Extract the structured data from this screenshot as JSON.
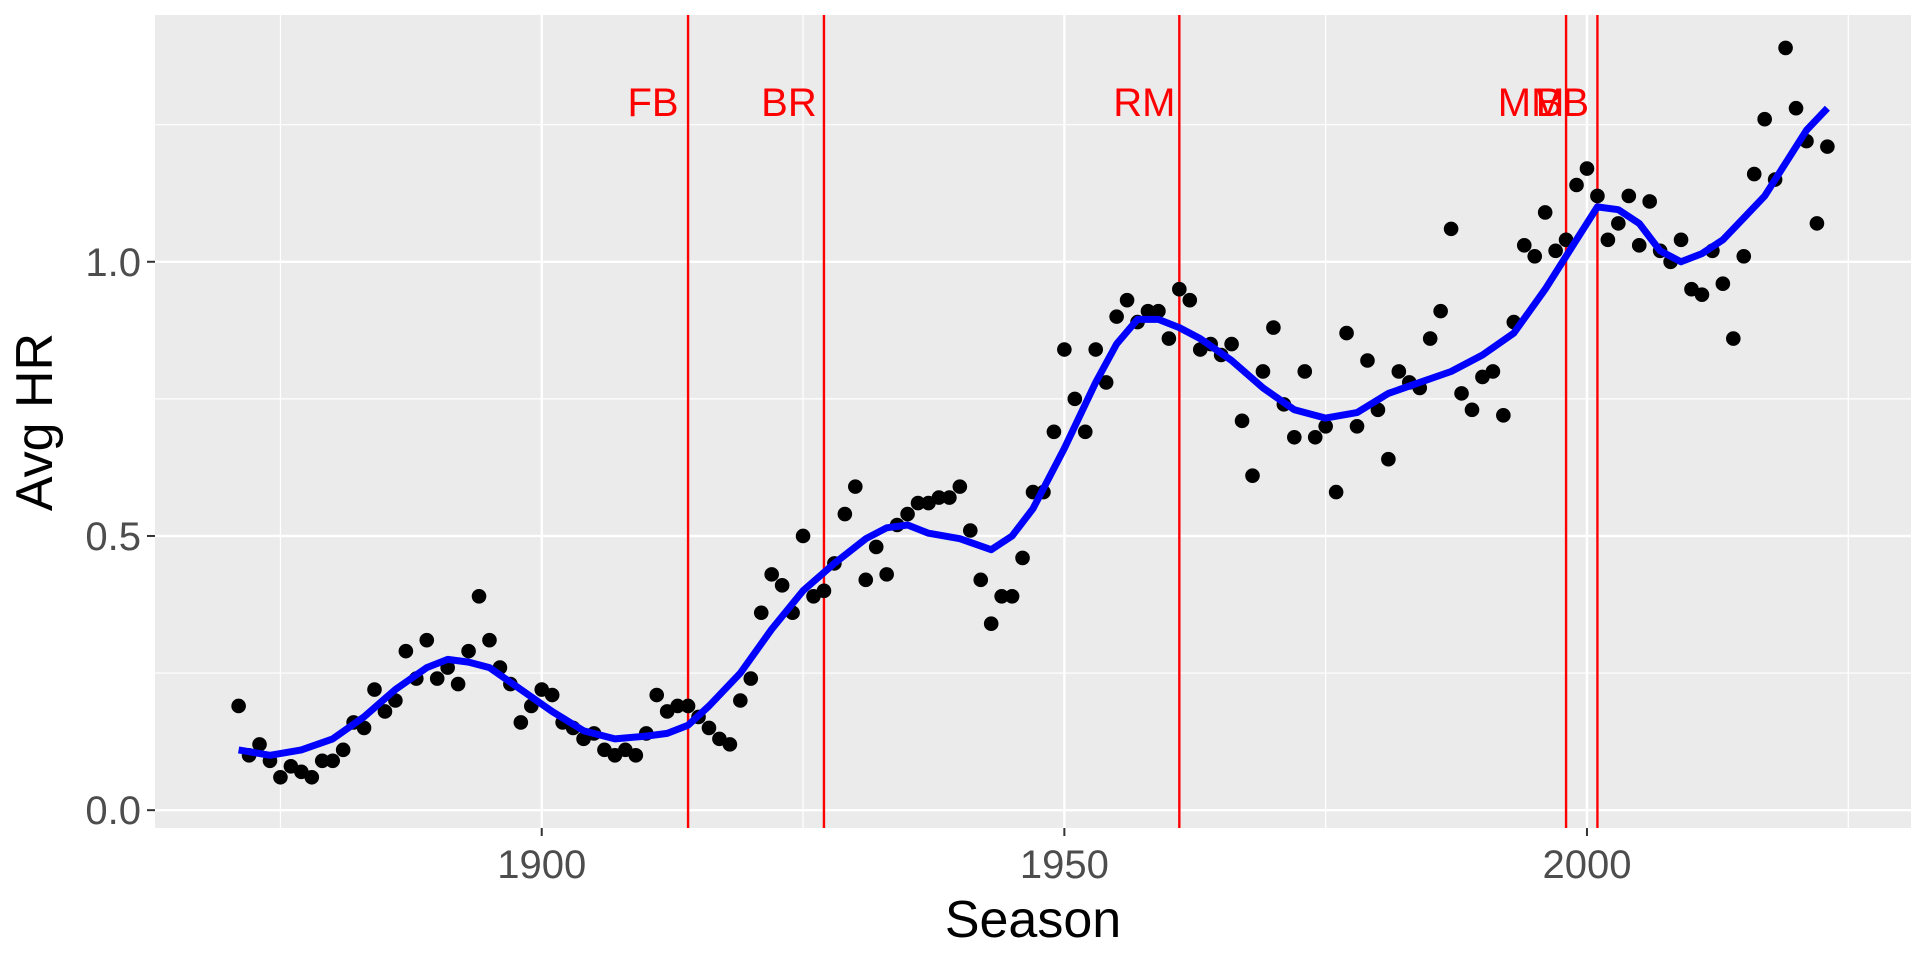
{
  "chart_data": {
    "type": "scatter",
    "xlabel": "Season",
    "ylabel": "Avg HR",
    "xlim": [
      1863,
      2031
    ],
    "ylim": [
      -0.0325,
      1.45
    ],
    "x_ticks": [
      1900,
      1950,
      2000
    ],
    "x_tick_labels": [
      "1900",
      "1950",
      "2000"
    ],
    "y_ticks": [
      0.0,
      0.5,
      1.0
    ],
    "y_tick_labels": [
      "0.0",
      "0.5",
      "1.0"
    ],
    "grid": true,
    "legend": "none",
    "colors": {
      "points": "#000000",
      "smooth": "#0000ff",
      "eras": "#ff0000",
      "panel": "#ebebeb",
      "grid": "#ffffff"
    },
    "series": [
      {
        "kind": "points",
        "x": [
          1871,
          1872,
          1873,
          1874,
          1875,
          1876,
          1877,
          1878,
          1879,
          1880,
          1881,
          1882,
          1883,
          1884,
          1885,
          1886,
          1887,
          1888,
          1889,
          1890,
          1891,
          1892,
          1893,
          1894,
          1895,
          1896,
          1897,
          1898,
          1899,
          1900,
          1901,
          1902,
          1903,
          1904,
          1905,
          1906,
          1907,
          1908,
          1909,
          1910,
          1911,
          1912,
          1913,
          1914,
          1915,
          1916,
          1917,
          1918,
          1919,
          1920,
          1921,
          1922,
          1923,
          1924,
          1925,
          1926,
          1927,
          1928,
          1929,
          1930,
          1931,
          1932,
          1933,
          1934,
          1935,
          1936,
          1937,
          1938,
          1939,
          1940,
          1941,
          1942,
          1943,
          1944,
          1945,
          1946,
          1947,
          1948,
          1949,
          1950,
          1951,
          1952,
          1953,
          1954,
          1955,
          1956,
          1957,
          1958,
          1959,
          1960,
          1961,
          1962,
          1963,
          1964,
          1965,
          1966,
          1967,
          1968,
          1969,
          1970,
          1971,
          1972,
          1973,
          1974,
          1975,
          1976,
          1977,
          1978,
          1979,
          1980,
          1981,
          1982,
          1983,
          1984,
          1985,
          1986,
          1987,
          1988,
          1989,
          1990,
          1991,
          1992,
          1993,
          1994,
          1995,
          1996,
          1997,
          1998,
          1999,
          2000,
          2001,
          2002,
          2003,
          2004,
          2005,
          2006,
          2007,
          2008,
          2009,
          2010,
          2011,
          2012,
          2013,
          2014,
          2015,
          2016,
          2017,
          2018,
          2019,
          2020,
          2021,
          2022,
          2023
        ],
        "y": [
          0.19,
          0.1,
          0.12,
          0.09,
          0.06,
          0.08,
          0.07,
          0.06,
          0.09,
          0.09,
          0.11,
          0.16,
          0.15,
          0.22,
          0.18,
          0.2,
          0.29,
          0.24,
          0.31,
          0.24,
          0.26,
          0.23,
          0.29,
          0.39,
          0.31,
          0.26,
          0.23,
          0.16,
          0.19,
          0.22,
          0.21,
          0.16,
          0.15,
          0.13,
          0.14,
          0.11,
          0.1,
          0.11,
          0.1,
          0.14,
          0.21,
          0.18,
          0.19,
          0.19,
          0.17,
          0.15,
          0.13,
          0.12,
          0.2,
          0.24,
          0.36,
          0.43,
          0.41,
          0.36,
          0.5,
          0.39,
          0.4,
          0.45,
          0.54,
          0.59,
          0.42,
          0.48,
          0.43,
          0.52,
          0.54,
          0.56,
          0.56,
          0.57,
          0.57,
          0.59,
          0.51,
          0.42,
          0.34,
          0.39,
          0.39,
          0.46,
          0.58,
          0.58,
          0.69,
          0.84,
          0.75,
          0.69,
          0.84,
          0.78,
          0.9,
          0.93,
          0.89,
          0.91,
          0.91,
          0.86,
          0.95,
          0.93,
          0.84,
          0.85,
          0.83,
          0.85,
          0.71,
          0.61,
          0.8,
          0.88,
          0.74,
          0.68,
          0.8,
          0.68,
          0.7,
          0.58,
          0.87,
          0.7,
          0.82,
          0.73,
          0.64,
          0.8,
          0.78,
          0.77,
          0.86,
          0.91,
          1.06,
          0.76,
          0.73,
          0.79,
          0.8,
          0.72,
          0.89,
          1.03,
          1.01,
          1.09,
          1.02,
          1.04,
          1.14,
          1.17,
          1.12,
          1.04,
          1.07,
          1.12,
          1.03,
          1.11,
          1.02,
          1.0,
          1.04,
          0.95,
          0.94,
          1.02,
          0.96,
          0.86,
          1.01,
          1.16,
          1.26,
          1.15,
          1.39,
          1.28,
          1.22,
          1.07,
          1.21
        ]
      },
      {
        "kind": "smooth",
        "x": [
          1871,
          1874,
          1877,
          1880,
          1883,
          1886,
          1889,
          1891,
          1893,
          1895,
          1898,
          1901,
          1904,
          1907,
          1910,
          1912,
          1914,
          1916,
          1919,
          1922,
          1925,
          1928,
          1931,
          1933,
          1935,
          1937,
          1940,
          1943,
          1945,
          1947,
          1950,
          1953,
          1955,
          1957,
          1959,
          1961,
          1963,
          1966,
          1969,
          1972,
          1975,
          1978,
          1981,
          1984,
          1987,
          1990,
          1993,
          1996,
          1999,
          2001,
          2003,
          2005,
          2007,
          2009,
          2011,
          2013,
          2015,
          2017,
          2019,
          2021,
          2023
        ],
        "y": [
          0.11,
          0.1,
          0.11,
          0.13,
          0.17,
          0.22,
          0.26,
          0.275,
          0.27,
          0.26,
          0.22,
          0.18,
          0.145,
          0.13,
          0.135,
          0.14,
          0.155,
          0.19,
          0.25,
          0.33,
          0.4,
          0.45,
          0.495,
          0.515,
          0.52,
          0.505,
          0.495,
          0.475,
          0.5,
          0.55,
          0.66,
          0.78,
          0.85,
          0.895,
          0.895,
          0.88,
          0.86,
          0.82,
          0.77,
          0.73,
          0.715,
          0.725,
          0.76,
          0.78,
          0.8,
          0.83,
          0.87,
          0.95,
          1.04,
          1.1,
          1.095,
          1.07,
          1.02,
          1.0,
          1.015,
          1.04,
          1.08,
          1.12,
          1.18,
          1.24,
          1.28
        ]
      }
    ],
    "reference_lines": [
      {
        "x": 1914,
        "label": "FB"
      },
      {
        "x": 1927,
        "label": "BR"
      },
      {
        "x": 1961,
        "label": "RM"
      },
      {
        "x": 1998,
        "label": "MM"
      },
      {
        "x": 2001,
        "label": "BB"
      }
    ]
  }
}
